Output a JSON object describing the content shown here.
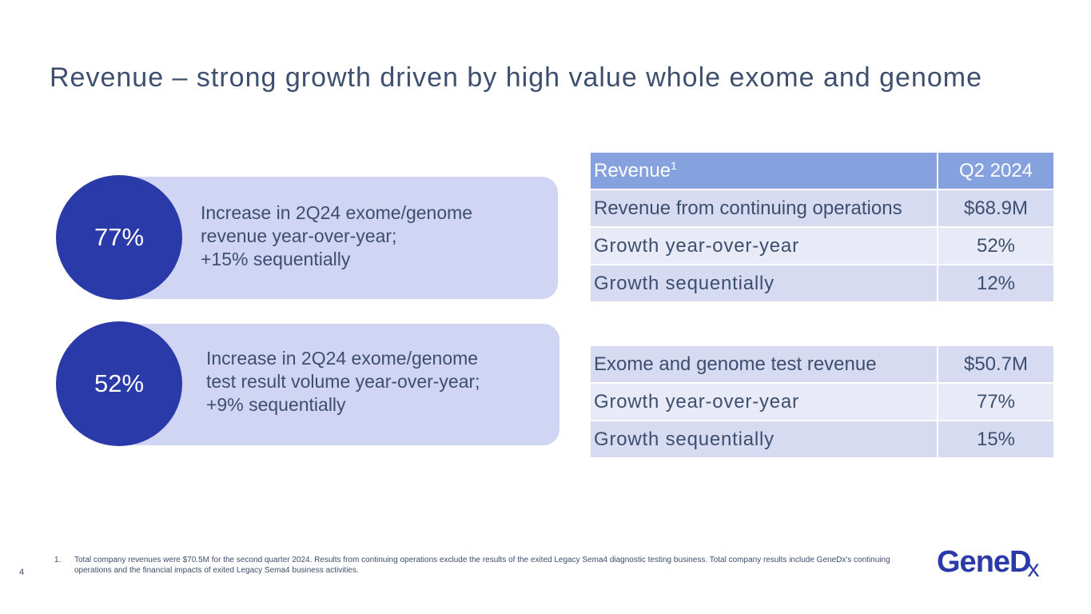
{
  "title": "Revenue – strong growth driven by high value whole exome and genome",
  "callouts": [
    {
      "value": "77%",
      "lines": [
        "Increase in 2Q24 exome/genome",
        "revenue year-over-year;",
        "+15% sequentially"
      ]
    },
    {
      "value": "52%",
      "lines": [
        "Increase in 2Q24 exome/genome",
        "test result volume year-over-year;",
        "+9% sequentially"
      ]
    }
  ],
  "table1": {
    "header": {
      "label": "Revenue",
      "footnote_marker": "1",
      "period": "Q2 2024"
    },
    "rows": [
      {
        "label": "Revenue from continuing operations",
        "value": "$68.9M"
      },
      {
        "label": "Growth year-over-year",
        "value": "52%"
      },
      {
        "label": "Growth sequentially",
        "value": "12%"
      }
    ]
  },
  "table2": {
    "rows": [
      {
        "label": "Exome and genome test revenue",
        "value": "$50.7M"
      },
      {
        "label": "Growth year-over-year",
        "value": "77%"
      },
      {
        "label": "Growth sequentially",
        "value": "15%"
      }
    ]
  },
  "footnote": {
    "number": "1.",
    "text": "Total company revenues were $70.5M for the second quarter 2024. Results from continuing operations exclude the results of the exited Legacy Sema4 diagnostic testing business. Total company results include GeneDx's continuing operations and the financial impacts of exited Legacy Sema4 business activities."
  },
  "page_number": "4",
  "logo": {
    "main": "GeneD",
    "tail": "x"
  },
  "colors": {
    "accent": "#2a3aa8",
    "header": "#86a2de",
    "callout_bg": "#cfd5f3",
    "text": "#3d4e6e"
  }
}
